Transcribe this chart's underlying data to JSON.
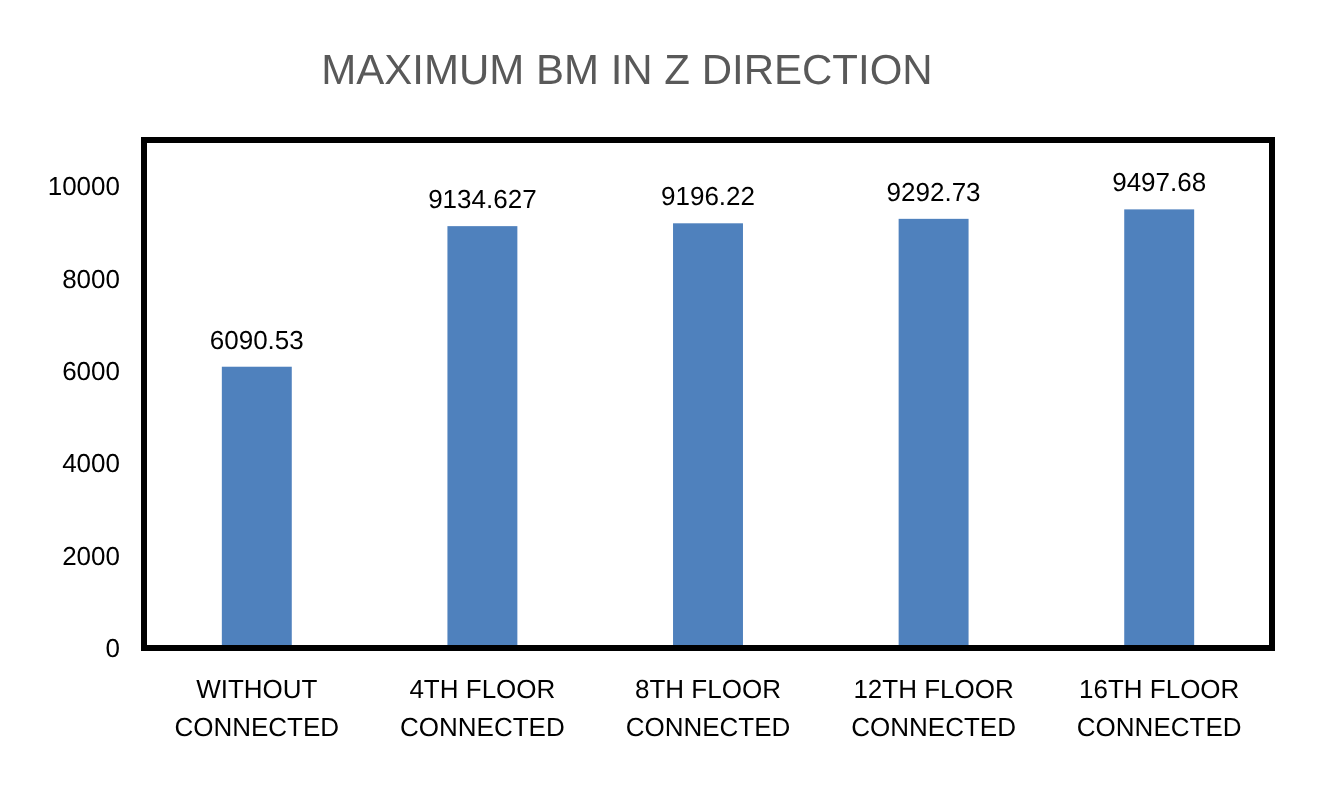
{
  "chart_data": {
    "type": "bar",
    "title": "MAXIMUM BM IN Z DIRECTION",
    "categories": [
      "WITHOUT CONNECTED",
      "4TH FLOOR CONNECTED",
      "8TH FLOOR CONNECTED",
      "12TH FLOOR CONNECTED",
      "16TH FLOOR CONNECTED"
    ],
    "values": [
      6090.53,
      9134.627,
      9196.22,
      9292.73,
      9497.68
    ],
    "color": "#4f81bd",
    "ylim": [
      0,
      11000
    ],
    "yticks": [
      0,
      2000,
      4000,
      6000,
      8000,
      10000
    ],
    "data_labels": true
  }
}
